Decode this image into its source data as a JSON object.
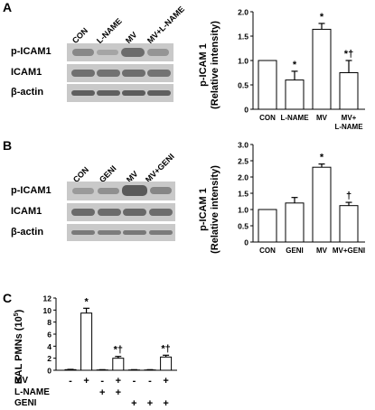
{
  "panels": [
    {
      "letter": "A",
      "blot": {
        "lanes": [
          "CON",
          "L-NAME",
          "MV",
          "MV+L-NAME"
        ],
        "rows": [
          "p-ICAM1",
          "ICAM1",
          "β-actin"
        ]
      }
    },
    {
      "letter": "B",
      "blot": {
        "lanes": [
          "CON",
          "GENI",
          "MV",
          "MV+GENI"
        ],
        "rows": [
          "p-ICAM1",
          "ICAM1",
          "β-actin"
        ]
      }
    },
    {
      "letter": "C"
    }
  ],
  "chart_data": [
    {
      "type": "bar",
      "ylabel_line1": "p-ICAM 1",
      "ylabel_line2": "(Relative intensity)",
      "ylim": [
        0,
        2
      ],
      "yticks": [
        "0",
        "0.5",
        "1.0",
        "1.5",
        "2.0"
      ],
      "categories": [
        [
          "CON"
        ],
        [
          "L-NAME"
        ],
        [
          "MV"
        ],
        [
          "MV+",
          "L-NAME"
        ]
      ],
      "values": [
        1.0,
        0.6,
        1.64,
        0.75
      ],
      "errors": [
        0,
        0.18,
        0.12,
        0.25
      ],
      "marks": [
        "",
        "*",
        "*",
        "*†"
      ]
    },
    {
      "type": "bar",
      "ylabel_line1": "p-ICAM 1",
      "ylabel_line2": "(Relative intensity)",
      "ylim": [
        0,
        3
      ],
      "yticks": [
        "0",
        "0.5",
        "1.0",
        "1.5",
        "2.0",
        "2.5",
        "3.0"
      ],
      "categories": [
        [
          "CON"
        ],
        [
          "GENI"
        ],
        [
          "MV"
        ],
        [
          "MV+GENI"
        ]
      ],
      "values": [
        1.0,
        1.2,
        2.3,
        1.12
      ],
      "errors": [
        0,
        0.17,
        0.1,
        0.1
      ],
      "marks": [
        "",
        "",
        "*",
        "†"
      ]
    },
    {
      "type": "bar",
      "ylabel": "BAL PMNs (10",
      "ylabel_sup": "5",
      "ylabel_end": ")",
      "ylim": [
        0,
        12
      ],
      "yticks": [
        "0",
        "2",
        "4",
        "6",
        "8",
        "10",
        "12"
      ],
      "values": [
        0.1,
        9.5,
        0.05,
        2.0,
        0.05,
        0.05,
        2.2
      ],
      "errors": [
        0.05,
        0.8,
        0.05,
        0.3,
        0.05,
        0.05,
        0.3
      ],
      "marks": [
        "",
        "*",
        "",
        "*†",
        "",
        "",
        "*†"
      ],
      "condition_rows": [
        {
          "label": "MV",
          "cells": [
            "-",
            "+",
            "-",
            "+",
            "-",
            "-",
            "+"
          ]
        },
        {
          "label": "L-NAME",
          "cells": [
            "",
            "",
            "+",
            "+",
            "",
            "",
            ""
          ]
        },
        {
          "label": "GENI",
          "cells": [
            "",
            "",
            "",
            "",
            "+",
            "+",
            "+"
          ]
        }
      ]
    }
  ]
}
